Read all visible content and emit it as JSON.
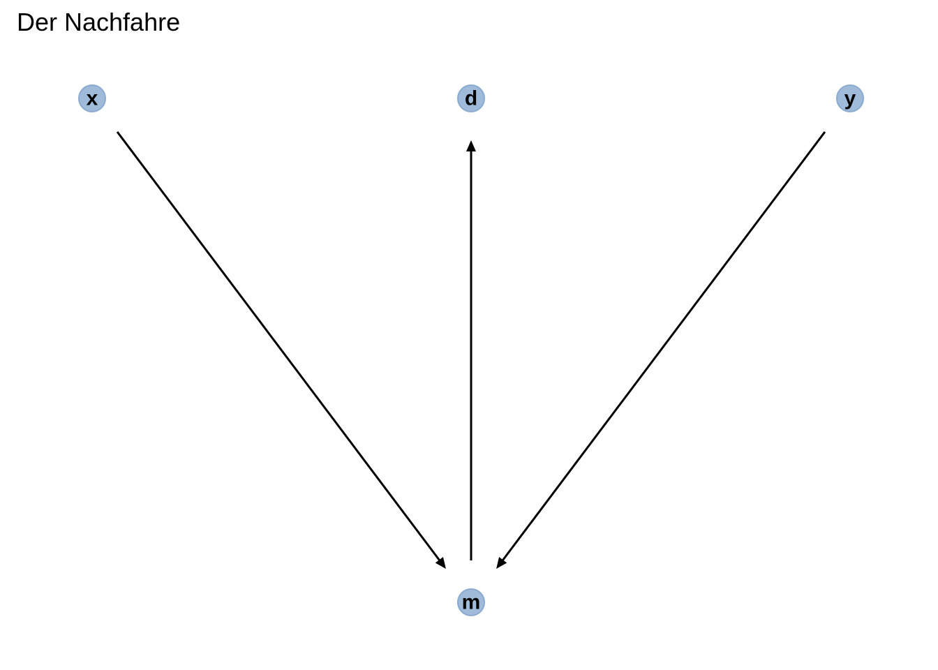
{
  "title": "Der Nachfahre",
  "colors": {
    "node_fill": "#9fbbd9",
    "node_stroke": "#8aaad0",
    "edge": "#000000"
  },
  "nodes": [
    {
      "id": "x",
      "label": "x"
    },
    {
      "id": "d",
      "label": "d"
    },
    {
      "id": "y",
      "label": "y"
    },
    {
      "id": "m",
      "label": "m"
    }
  ],
  "edges": [
    {
      "from": "x",
      "to": "m"
    },
    {
      "from": "m",
      "to": "d"
    },
    {
      "from": "y",
      "to": "m"
    }
  ]
}
